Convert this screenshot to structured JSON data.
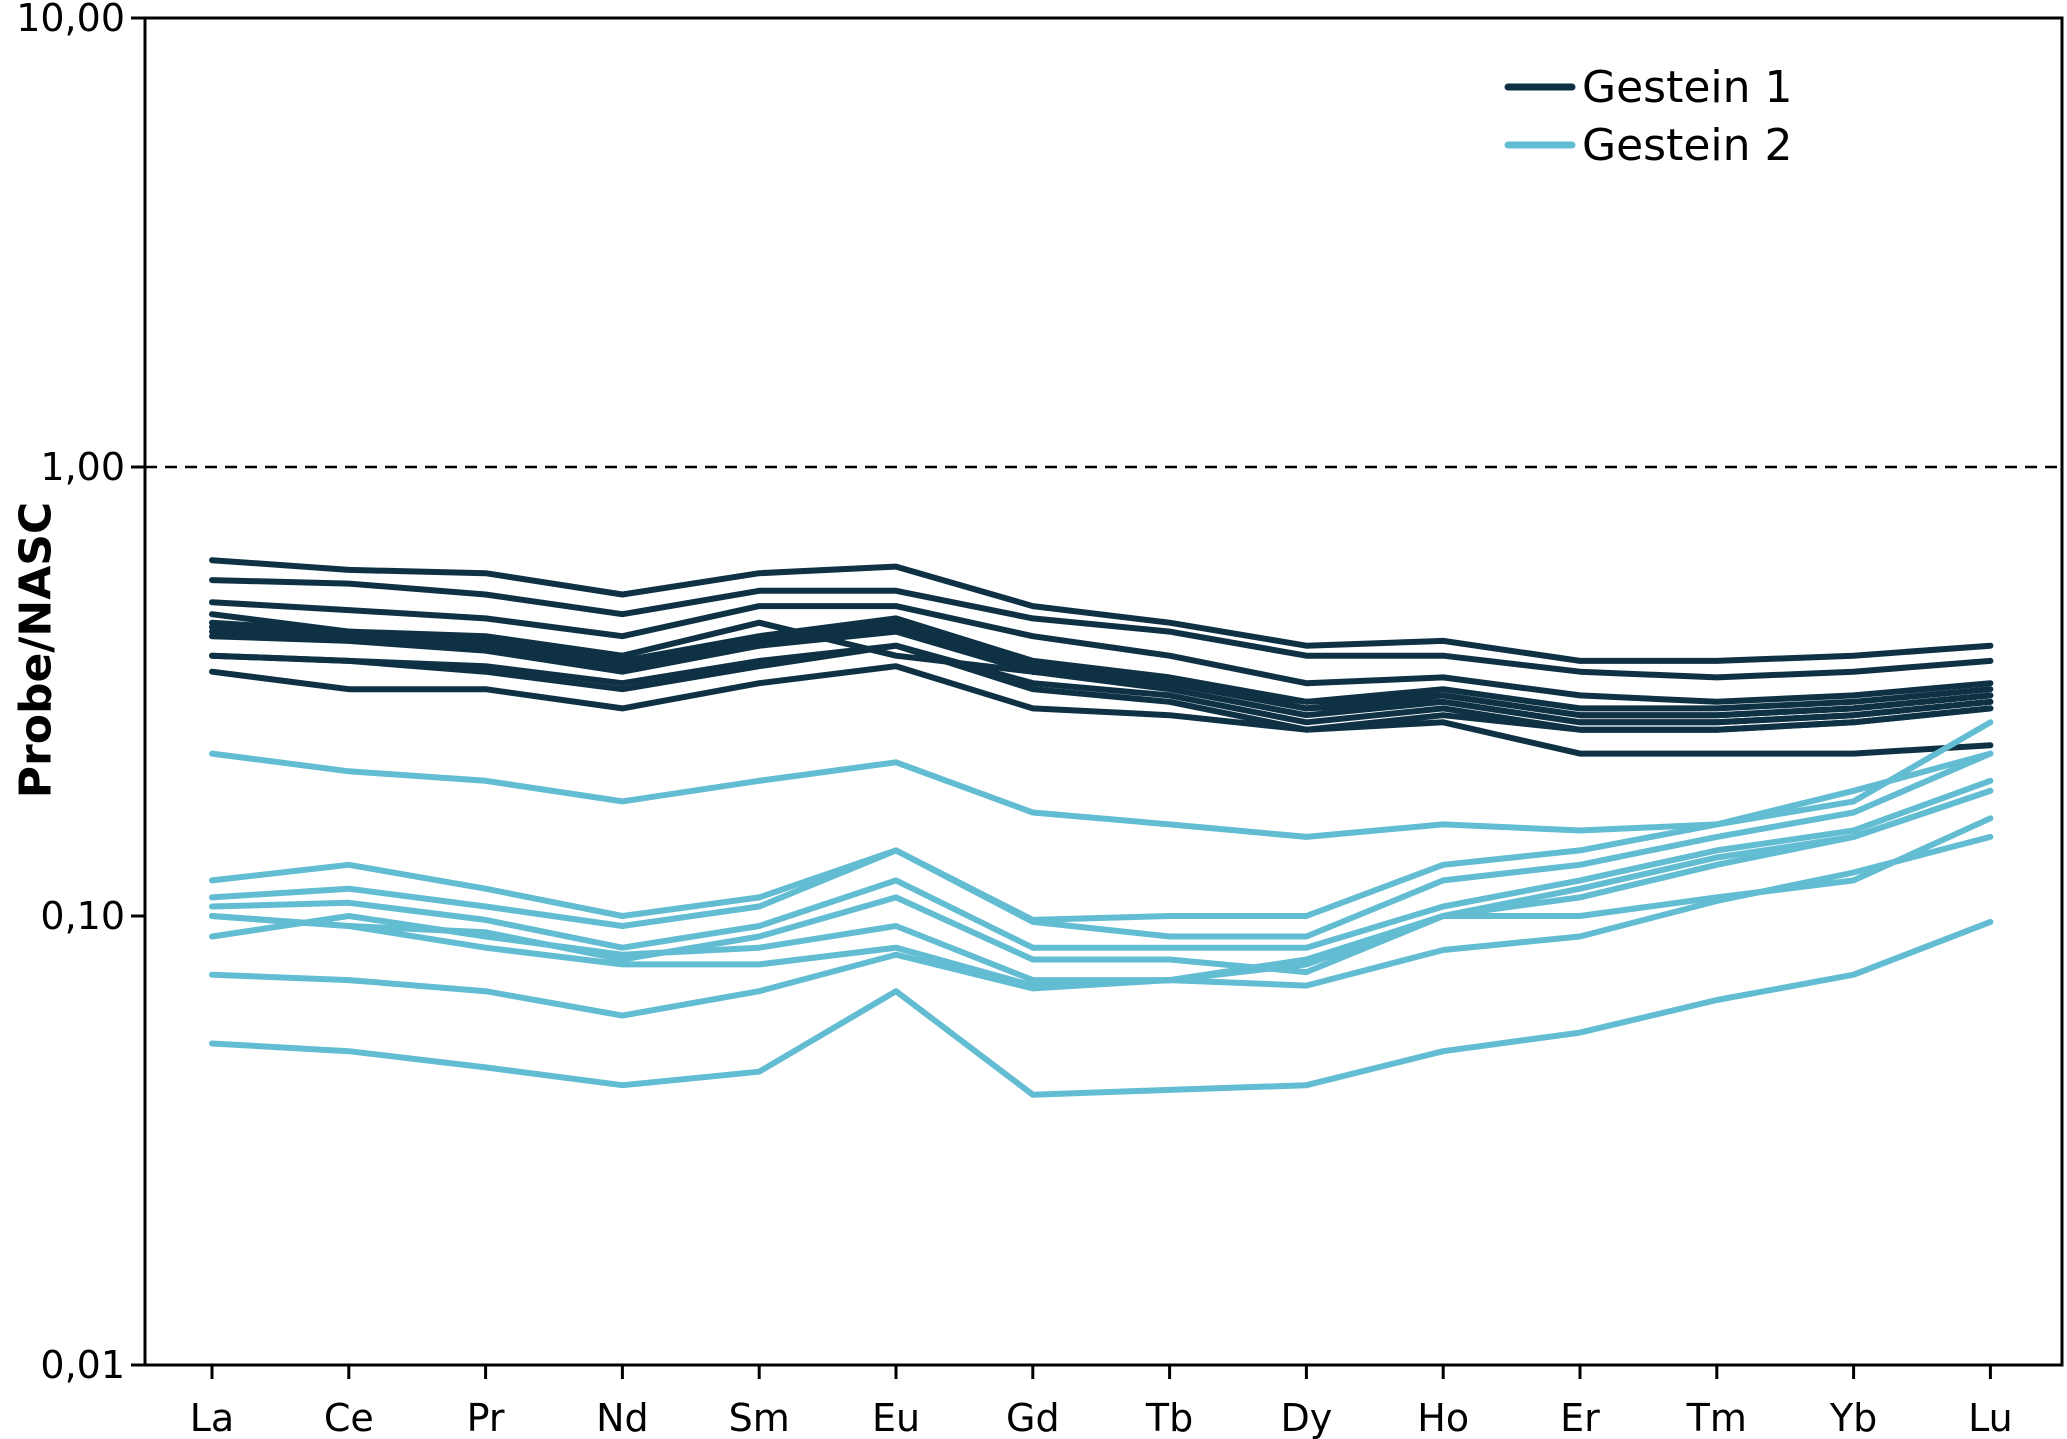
{
  "chart_data": {
    "type": "line",
    "title": "",
    "xlabel": "",
    "ylabel": "Probe/NASC",
    "y_scale": "log",
    "ylim": [
      0.01,
      10
    ],
    "y_ticks": [
      {
        "value": 0.01,
        "label": "0,01"
      },
      {
        "value": 0.1,
        "label": "0,10"
      },
      {
        "value": 1,
        "label": "1,00"
      },
      {
        "value": 10,
        "label": "10,00"
      }
    ],
    "reference_line": {
      "value": 1,
      "style": "dashed"
    },
    "categories": [
      "La",
      "Ce",
      "Pr",
      "Nd",
      "Sm",
      "Eu",
      "Gd",
      "Tb",
      "Dy",
      "Ho",
      "Er",
      "Tm",
      "Yb",
      "Lu"
    ],
    "grid": false,
    "legend": {
      "position": "top-right"
    },
    "groups": [
      {
        "name": "Gestein 1",
        "color": "#0e3144"
      },
      {
        "name": "Gestein 2",
        "color": "#62bcd2"
      }
    ],
    "series": [
      {
        "group": "Gestein 1",
        "values": [
          0.62,
          0.59,
          0.58,
          0.52,
          0.58,
          0.6,
          0.49,
          0.45,
          0.4,
          0.41,
          0.37,
          0.37,
          0.38,
          0.4
        ]
      },
      {
        "group": "Gestein 1",
        "values": [
          0.56,
          0.55,
          0.52,
          0.47,
          0.53,
          0.53,
          0.46,
          0.43,
          0.38,
          0.38,
          0.35,
          0.34,
          0.35,
          0.37
        ]
      },
      {
        "group": "Gestein 1",
        "values": [
          0.5,
          0.48,
          0.46,
          0.42,
          0.49,
          0.49,
          0.42,
          0.38,
          0.33,
          0.34,
          0.31,
          0.3,
          0.31,
          0.33
        ]
      },
      {
        "group": "Gestein 1",
        "values": [
          0.47,
          0.43,
          0.42,
          0.38,
          0.45,
          0.38,
          0.35,
          0.33,
          0.3,
          0.31,
          0.28,
          0.28,
          0.29,
          0.31
        ]
      },
      {
        "group": "Gestein 1",
        "values": [
          0.45,
          0.43,
          0.41,
          0.37,
          0.42,
          0.46,
          0.37,
          0.34,
          0.3,
          0.32,
          0.29,
          0.29,
          0.3,
          0.32
        ]
      },
      {
        "group": "Gestein 1",
        "values": [
          0.44,
          0.42,
          0.4,
          0.36,
          0.41,
          0.45,
          0.36,
          0.33,
          0.29,
          0.31,
          0.28,
          0.28,
          0.29,
          0.31
        ]
      },
      {
        "group": "Gestein 1",
        "values": [
          0.43,
          0.42,
          0.4,
          0.36,
          0.4,
          0.44,
          0.35,
          0.33,
          0.29,
          0.3,
          0.27,
          0.27,
          0.28,
          0.3
        ]
      },
      {
        "group": "Gestein 1",
        "values": [
          0.42,
          0.41,
          0.39,
          0.35,
          0.4,
          0.43,
          0.35,
          0.32,
          0.28,
          0.3,
          0.27,
          0.27,
          0.28,
          0.3
        ]
      },
      {
        "group": "Gestein 1",
        "values": [
          0.38,
          0.37,
          0.36,
          0.33,
          0.37,
          0.4,
          0.33,
          0.31,
          0.27,
          0.29,
          0.26,
          0.26,
          0.27,
          0.29
        ]
      },
      {
        "group": "Gestein 1",
        "values": [
          0.38,
          0.37,
          0.35,
          0.32,
          0.36,
          0.4,
          0.32,
          0.3,
          0.26,
          0.28,
          0.26,
          0.26,
          0.27,
          0.29
        ]
      },
      {
        "group": "Gestein 1",
        "values": [
          0.35,
          0.32,
          0.32,
          0.29,
          0.33,
          0.36,
          0.29,
          0.28,
          0.26,
          0.27,
          0.23,
          0.23,
          0.23,
          0.24
        ]
      },
      {
        "group": "Gestein 2",
        "values": [
          0.23,
          0.21,
          0.2,
          0.18,
          0.2,
          0.22,
          0.17,
          0.16,
          0.15,
          0.16,
          0.155,
          0.16,
          0.18,
          0.27
        ]
      },
      {
        "group": "Gestein 2",
        "values": [
          0.12,
          0.13,
          0.115,
          0.1,
          0.11,
          0.14,
          0.098,
          0.1,
          0.1,
          0.13,
          0.14,
          0.16,
          0.19,
          0.23
        ]
      },
      {
        "group": "Gestein 2",
        "values": [
          0.11,
          0.115,
          0.105,
          0.095,
          0.105,
          0.14,
          0.097,
          0.09,
          0.09,
          0.12,
          0.13,
          0.15,
          0.17,
          0.23
        ]
      },
      {
        "group": "Gestein 2",
        "values": [
          0.105,
          0.107,
          0.098,
          0.085,
          0.095,
          0.12,
          0.085,
          0.085,
          0.085,
          0.105,
          0.12,
          0.14,
          0.155,
          0.2
        ]
      },
      {
        "group": "Gestein 2",
        "values": [
          0.1,
          0.095,
          0.092,
          0.08,
          0.09,
          0.11,
          0.08,
          0.08,
          0.075,
          0.1,
          0.115,
          0.135,
          0.15,
          0.19
        ]
      },
      {
        "group": "Gestein 2",
        "values": [
          0.09,
          0.1,
          0.09,
          0.082,
          0.085,
          0.095,
          0.072,
          0.072,
          0.078,
          0.1,
          0.1,
          0.11,
          0.12,
          0.165
        ]
      },
      {
        "group": "Gestein 2",
        "values": [
          0.1,
          0.095,
          0.085,
          0.078,
          0.078,
          0.085,
          0.07,
          0.072,
          0.07,
          0.084,
          0.09,
          0.108,
          0.125,
          0.15
        ]
      },
      {
        "group": "Gestein 2",
        "values": [
          0.074,
          0.072,
          0.068,
          0.06,
          0.068,
          0.082,
          0.069,
          0.072,
          0.08,
          0.1,
          0.11,
          0.13,
          0.15,
          0.19
        ]
      },
      {
        "group": "Gestein 2",
        "values": [
          0.052,
          0.05,
          0.046,
          0.042,
          0.045,
          0.068,
          0.04,
          0.041,
          0.042,
          0.05,
          0.055,
          0.065,
          0.074,
          0.097
        ]
      }
    ]
  }
}
